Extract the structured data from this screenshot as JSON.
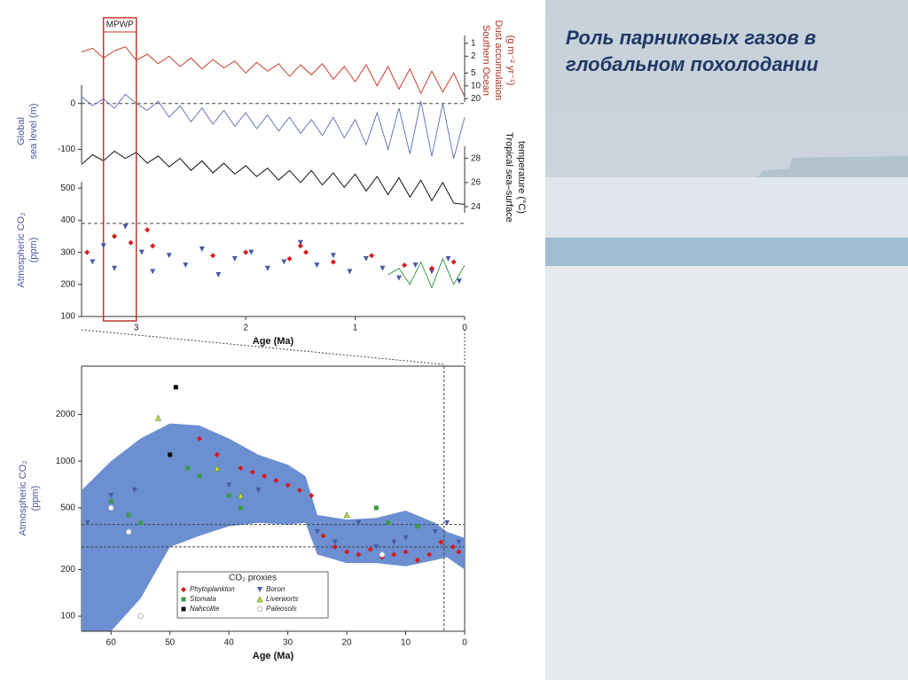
{
  "slide": {
    "title": "Роль парниковых газов в глобальном похолодании"
  },
  "chart_data": [
    {
      "type": "line",
      "ylabel": [
        "Southern Ocean",
        "Dust accumulation",
        "(g m⁻² yr⁻¹)"
      ],
      "axis_side": "right",
      "log_scale": true,
      "inverted": true,
      "xlim": [
        3.5,
        0
      ],
      "ylim": [
        0.65,
        24
      ],
      "yticks": [
        1,
        2,
        5,
        10,
        20
      ],
      "color": "#c8402f",
      "x": [
        3.5,
        3.4,
        3.3,
        3.2,
        3.1,
        3.0,
        2.9,
        2.8,
        2.7,
        2.6,
        2.5,
        2.4,
        2.3,
        2.2,
        2.1,
        2.0,
        1.9,
        1.8,
        1.7,
        1.6,
        1.5,
        1.4,
        1.3,
        1.2,
        1.1,
        1.0,
        0.9,
        0.8,
        0.7,
        0.6,
        0.5,
        0.4,
        0.3,
        0.2,
        0.1,
        0
      ],
      "values": [
        1.6,
        1.3,
        2.2,
        1.5,
        1.2,
        2.5,
        1.8,
        3.0,
        2.0,
        3.5,
        2.2,
        4.0,
        2.4,
        3.8,
        2.6,
        5.0,
        2.8,
        4.5,
        3.0,
        6.0,
        3.2,
        5.5,
        3.0,
        7.0,
        3.5,
        8.0,
        3.2,
        10,
        3.5,
        12,
        4,
        15,
        4.5,
        14,
        5,
        18
      ]
    },
    {
      "type": "line",
      "ylabel": [
        "Global",
        "sea level (m)"
      ],
      "axis_side": "left",
      "xlim": [
        3.5,
        0
      ],
      "ylim": [
        -130,
        40
      ],
      "yticks": [
        -100,
        0
      ],
      "reference": 0,
      "color": "#6a78b8",
      "x": [
        3.5,
        3.4,
        3.3,
        3.2,
        3.1,
        3.0,
        2.9,
        2.8,
        2.7,
        2.6,
        2.5,
        2.4,
        2.3,
        2.2,
        2.1,
        2.0,
        1.9,
        1.8,
        1.7,
        1.6,
        1.5,
        1.4,
        1.3,
        1.2,
        1.1,
        1.0,
        0.9,
        0.8,
        0.7,
        0.6,
        0.5,
        0.4,
        0.3,
        0.2,
        0.1,
        0
      ],
      "values": [
        15,
        -5,
        10,
        -10,
        20,
        0,
        -15,
        5,
        -30,
        -5,
        -40,
        -10,
        -45,
        -15,
        -50,
        -20,
        -55,
        -25,
        -60,
        -30,
        -65,
        -35,
        -70,
        -30,
        -75,
        -35,
        -90,
        -20,
        -100,
        -10,
        -110,
        5,
        -115,
        0,
        -120,
        -30
      ]
    },
    {
      "type": "line",
      "ylabel": [
        "Tropical sea–surface",
        "temperature (°C)"
      ],
      "axis_side": "right",
      "xlim": [
        3.5,
        0
      ],
      "ylim": [
        23.5,
        29
      ],
      "yticks": [
        24,
        26,
        28
      ],
      "color": "#111111",
      "x": [
        3.5,
        3.4,
        3.3,
        3.2,
        3.1,
        3.0,
        2.9,
        2.8,
        2.7,
        2.6,
        2.5,
        2.4,
        2.3,
        2.2,
        2.1,
        2.0,
        1.9,
        1.8,
        1.7,
        1.6,
        1.5,
        1.4,
        1.3,
        1.2,
        1.1,
        1.0,
        0.9,
        0.8,
        0.7,
        0.6,
        0.5,
        0.4,
        0.3,
        0.2,
        0.1,
        0
      ],
      "values": [
        27.5,
        28.3,
        27.8,
        28.6,
        28.0,
        28.5,
        27.6,
        28.2,
        27.3,
        28.0,
        27.0,
        27.8,
        26.8,
        27.6,
        26.7,
        27.4,
        26.5,
        27.2,
        26.2,
        27.0,
        26.0,
        27.0,
        25.8,
        26.8,
        25.6,
        26.7,
        25.3,
        26.5,
        25.0,
        26.4,
        24.8,
        26.2,
        24.5,
        26.0,
        24.3,
        24.2
      ]
    },
    {
      "type": "scatter",
      "ylabel": [
        "Atmospheric CO₂",
        "(ppm)"
      ],
      "axis_side": "left",
      "xlabel": "Age (Ma)",
      "xlim": [
        3.5,
        0
      ],
      "xticks": [
        3,
        2,
        1,
        0
      ],
      "ylim": [
        100,
        520
      ],
      "yticks": [
        100,
        200,
        300,
        400,
        500
      ],
      "reference": 390,
      "highlight": {
        "label": "MPWP",
        "range": [
          3.3,
          3.0
        ],
        "color": "#c0392b"
      },
      "series": [
        {
          "color": "#4a5aa8",
          "marker": "triangle-down",
          "x": [
            3.4,
            3.3,
            3.2,
            3.1,
            2.95,
            2.85,
            2.7,
            2.55,
            2.4,
            2.25,
            2.1,
            1.95,
            1.8,
            1.65,
            1.5,
            1.35,
            1.2,
            1.05,
            0.9,
            0.75,
            0.6,
            0.45,
            0.3,
            0.15,
            0.05
          ],
          "values": [
            270,
            320,
            250,
            380,
            300,
            240,
            290,
            260,
            310,
            230,
            280,
            300,
            250,
            270,
            330,
            260,
            290,
            240,
            280,
            250,
            220,
            260,
            240,
            280,
            210
          ]
        },
        {
          "color": "#d7191c",
          "marker": "diamond",
          "x": [
            3.45,
            3.2,
            3.05,
            2.9,
            2.85,
            2.3,
            2.0,
            1.6,
            1.5,
            1.45,
            1.2,
            0.85,
            0.55,
            0.3,
            0.1
          ],
          "values": [
            300,
            350,
            330,
            370,
            320,
            290,
            300,
            280,
            320,
            300,
            270,
            290,
            260,
            250,
            270
          ]
        },
        {
          "color": "#3a9a4a",
          "marker": "line",
          "x": [
            0.7,
            0.6,
            0.5,
            0.4,
            0.3,
            0.2,
            0.1,
            0
          ],
          "values": [
            230,
            250,
            200,
            270,
            190,
            280,
            200,
            260
          ]
        }
      ]
    },
    {
      "type": "scatter",
      "ylabel": [
        "Atmospheric CO₂",
        "(ppm)"
      ],
      "axis_side": "left",
      "xlabel": "Age (Ma)",
      "xlim": [
        65,
        0
      ],
      "xticks": [
        60,
        50,
        40,
        30,
        20,
        10,
        0
      ],
      "log_scale": true,
      "ylim": [
        80,
        4100
      ],
      "yticks": [
        100,
        200,
        500,
        1000,
        2000
      ],
      "references": [
        390,
        280
      ],
      "band": {
        "color": "#6b8fd0",
        "x": [
          65,
          60,
          55,
          50,
          45,
          40,
          35,
          30,
          27,
          25,
          20,
          15,
          10,
          5,
          3,
          0
        ],
        "upper": [
          650,
          1000,
          1400,
          1750,
          1700,
          1400,
          1100,
          950,
          800,
          450,
          420,
          430,
          480,
          400,
          350,
          320
        ],
        "lower": [
          80,
          80,
          130,
          280,
          330,
          380,
          400,
          390,
          400,
          250,
          220,
          220,
          210,
          230,
          240,
          200
        ]
      },
      "legend_title": "CO₂ proxies",
      "series": [
        {
          "name": "Phytoplankton",
          "color": "#d7191c",
          "marker": "diamond",
          "x": [
            45,
            42,
            38,
            36,
            34,
            32,
            30,
            28,
            26,
            24,
            22,
            20,
            18,
            16,
            14,
            12,
            10,
            8,
            6,
            4,
            2,
            1
          ],
          "values": [
            1400,
            1100,
            900,
            850,
            800,
            750,
            700,
            650,
            600,
            330,
            280,
            260,
            250,
            270,
            240,
            250,
            260,
            230,
            250,
            300,
            280,
            260
          ]
        },
        {
          "name": "Stomata",
          "color": "#3a9a4a",
          "marker": "square",
          "x": [
            60,
            57,
            55,
            47,
            45,
            40,
            38,
            15,
            13,
            8
          ],
          "values": [
            550,
            450,
            400,
            900,
            800,
            600,
            500,
            500,
            400,
            380
          ]
        },
        {
          "name": "Nahcolite",
          "color": "#111111",
          "marker": "square",
          "x": [
            50,
            49
          ],
          "values": [
            1100,
            3000
          ]
        },
        {
          "name": "Boron",
          "color": "#4a5aa8",
          "marker": "triangle-down",
          "x": [
            64,
            60,
            56,
            40,
            35,
            25,
            22,
            18,
            15,
            12,
            10,
            5,
            3,
            1
          ],
          "values": [
            400,
            600,
            650,
            700,
            650,
            350,
            300,
            400,
            280,
            300,
            320,
            350,
            400,
            300
          ]
        },
        {
          "name": "Liverworts",
          "color": "#e8d32a",
          "marker": "triangle-up",
          "x": [
            52,
            42,
            38,
            20
          ],
          "values": [
            1900,
            900,
            600,
            450
          ]
        },
        {
          "name": "Paleosols",
          "color": "#b8b8b8",
          "marker": "circle",
          "x": [
            60,
            57,
            55,
            14
          ],
          "values": [
            500,
            350,
            100,
            250
          ]
        }
      ]
    }
  ]
}
